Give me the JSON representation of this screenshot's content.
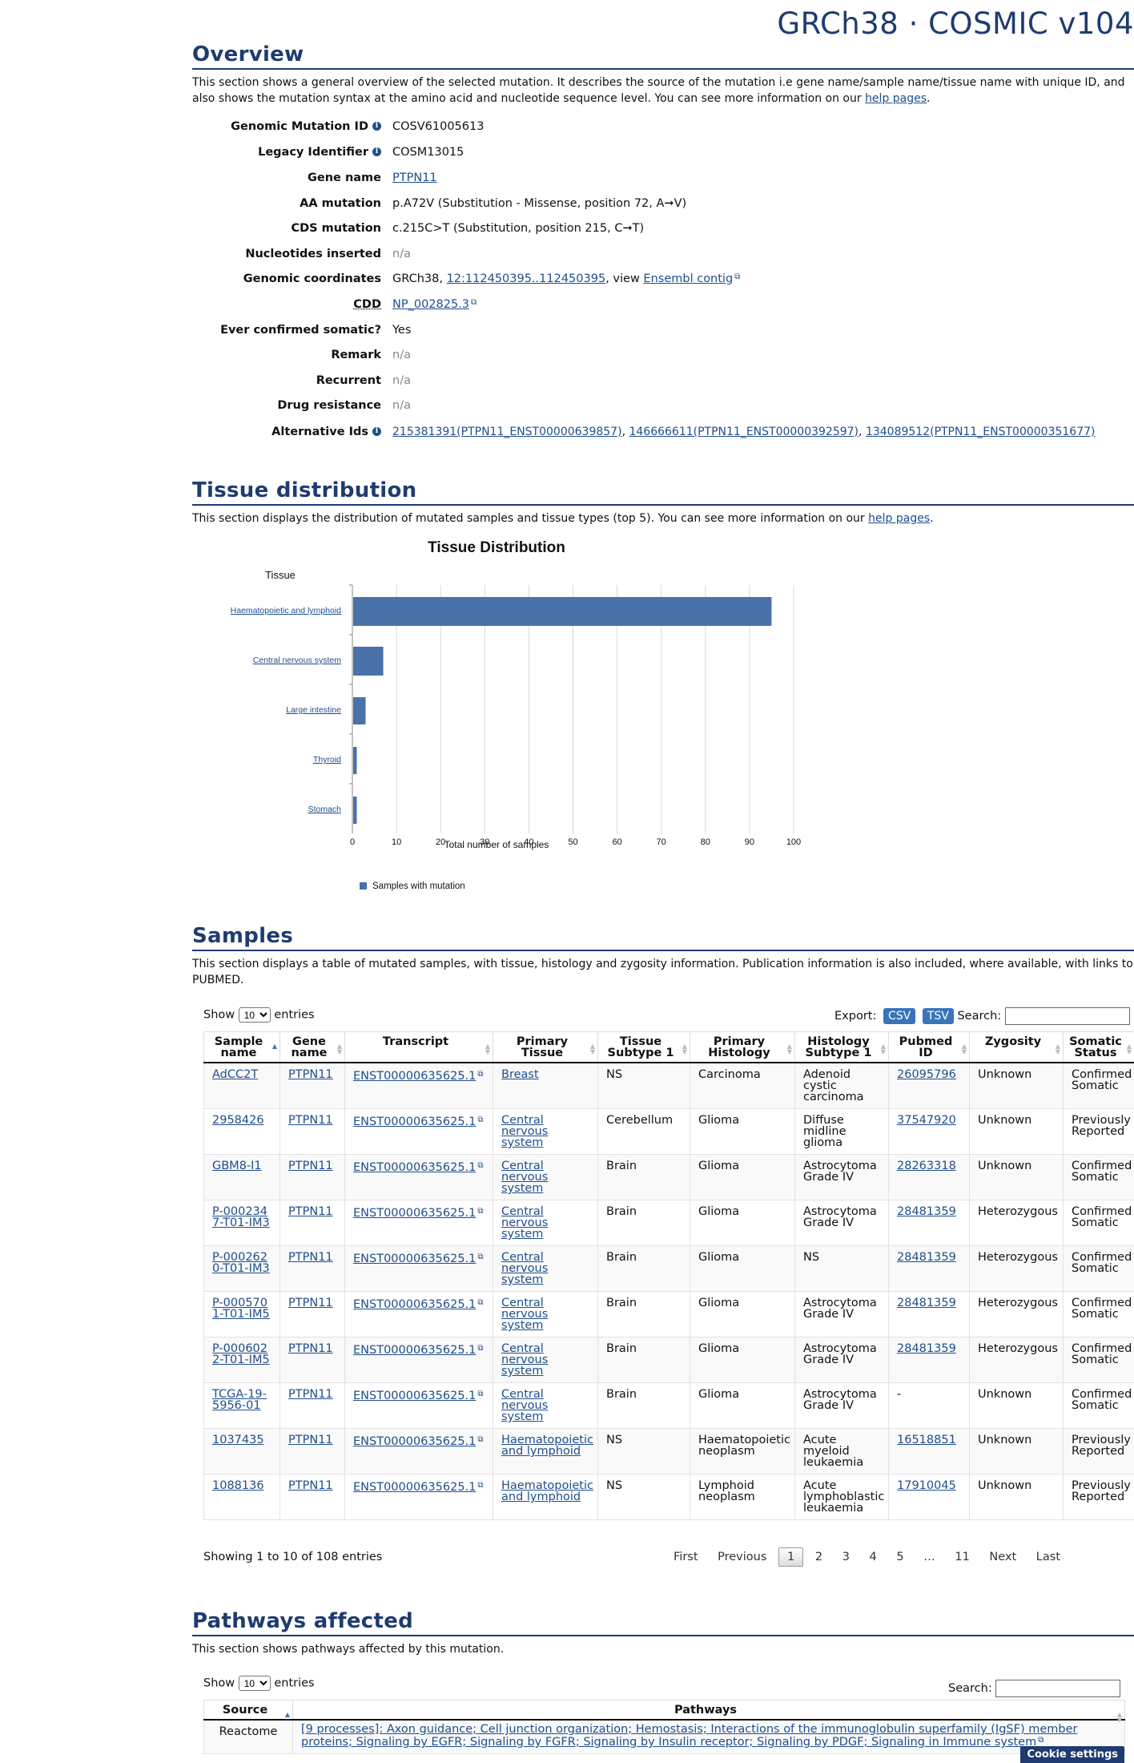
{
  "brand": "GRCh38 · COSMIC v104",
  "overview": {
    "title": "Overview",
    "desc_pre": "This section shows a general overview of the selected mutation. It describes the source of the mutation i.e gene name/sample name/tissue name with unique ID, and also shows the mutation syntax at the amino acid and nucleotide sequence level. You can see more information on our ",
    "help_link": "help pages",
    "desc_post": ".",
    "rows": {
      "genomic_id": {
        "label": "Genomic Mutation ID",
        "value": "COSV61005613"
      },
      "legacy_id": {
        "label": "Legacy Identifier",
        "value": "COSM13015"
      },
      "gene": {
        "label": "Gene name",
        "value": "PTPN11"
      },
      "aa": {
        "label": "AA mutation",
        "value": "p.A72V (Substitution - Missense, position 72, A➞V)"
      },
      "cds": {
        "label": "CDS mutation",
        "value": "c.215C>T (Substitution, position 215, C➞T)"
      },
      "nuc": {
        "label": "Nucleotides inserted",
        "value": "n/a"
      },
      "coords": {
        "label": "Genomic coordinates",
        "prefix": "GRCh38, ",
        "link": "12:112450395..112450395",
        "mid": ", view ",
        "link2": "Ensembl contig"
      },
      "cdd": {
        "label": "CDD",
        "value": "NP_002825.3"
      },
      "somatic": {
        "label": "Ever confirmed somatic?",
        "value": "Yes"
      },
      "remark": {
        "label": "Remark",
        "value": "n/a"
      },
      "recurrent": {
        "label": "Recurrent",
        "value": "n/a"
      },
      "drug": {
        "label": "Drug resistance",
        "value": "n/a"
      },
      "alt": {
        "label": "Alternative Ids",
        "id1": "215381391(PTPN11_ENST00000639857)",
        "id2": "146666611(PTPN11_ENST00000392597)",
        "id3": "134089512(PTPN11_ENST00000351677)",
        "sep": ", "
      }
    }
  },
  "tissue": {
    "title": "Tissue distribution",
    "desc_pre": "This section displays the distribution of mutated samples and tissue types (top 5). You can see more information on our ",
    "help_link": "help pages",
    "desc_post": "."
  },
  "chart_data": {
    "type": "bar",
    "orientation": "horizontal",
    "title": "Tissue Distribution",
    "ylabel": "Tissue",
    "xlabel": "Total number of samples",
    "categories": [
      "Haematopoietic and lymphoid",
      "Central nervous system",
      "Large intestine",
      "Thyroid",
      "Stomach"
    ],
    "series": [
      {
        "name": "Samples with mutation",
        "values": [
          95,
          7,
          3,
          1,
          1
        ]
      }
    ],
    "xlim": [
      0,
      100
    ],
    "xticks": [
      0,
      10,
      20,
      30,
      40,
      50,
      60,
      70,
      80,
      90,
      100
    ],
    "grid": true,
    "legend": "bottom-left",
    "color": "#4a72a8"
  },
  "samples": {
    "title": "Samples",
    "desc": "This section displays a table of mutated samples, with tissue, histology and zygosity information. Publication information is also included, where available, with links to PUBMED.",
    "show_label": "Show",
    "entries_label": "entries",
    "page_size": "10",
    "export_label": "Export:",
    "csv": "CSV",
    "tsv": "TSV",
    "search_label": "Search:",
    "headers": [
      "Sample name",
      "Gene name",
      "Transcript",
      "Primary Tissue",
      "Tissue Subtype 1",
      "Primary Histology",
      "Histology Subtype 1",
      "Pubmed ID",
      "Zygosity",
      "Somatic Status"
    ],
    "rows": [
      [
        "AdCC2T",
        "PTPN11",
        "ENST00000635625.1",
        "Breast",
        "NS",
        "Carcinoma",
        "Adenoid cystic carcinoma",
        "26095796",
        "Unknown",
        "Confirmed Somatic"
      ],
      [
        "2958426",
        "PTPN11",
        "ENST00000635625.1",
        "Central nervous system",
        "Cerebellum",
        "Glioma",
        "Diffuse midline glioma",
        "37547920",
        "Unknown",
        "Previously Reported"
      ],
      [
        "GBM8-I1",
        "PTPN11",
        "ENST00000635625.1",
        "Central nervous system",
        "Brain",
        "Glioma",
        "Astrocytoma Grade IV",
        "28263318",
        "Unknown",
        "Confirmed Somatic"
      ],
      [
        "P-0002347-T01-IM3",
        "PTPN11",
        "ENST00000635625.1",
        "Central nervous system",
        "Brain",
        "Glioma",
        "Astrocytoma Grade IV",
        "28481359",
        "Heterozygous",
        "Confirmed Somatic"
      ],
      [
        "P-0002620-T01-IM3",
        "PTPN11",
        "ENST00000635625.1",
        "Central nervous system",
        "Brain",
        "Glioma",
        "NS",
        "28481359",
        "Heterozygous",
        "Confirmed Somatic"
      ],
      [
        "P-0005701-T01-IM5",
        "PTPN11",
        "ENST00000635625.1",
        "Central nervous system",
        "Brain",
        "Glioma",
        "Astrocytoma Grade IV",
        "28481359",
        "Heterozygous",
        "Confirmed Somatic"
      ],
      [
        "P-0006022-T01-IM5",
        "PTPN11",
        "ENST00000635625.1",
        "Central nervous system",
        "Brain",
        "Glioma",
        "Astrocytoma Grade IV",
        "28481359",
        "Heterozygous",
        "Confirmed Somatic"
      ],
      [
        "TCGA-19-5956-01",
        "PTPN11",
        "ENST00000635625.1",
        "Central nervous system",
        "Brain",
        "Glioma",
        "Astrocytoma Grade IV",
        "-",
        "Unknown",
        "Confirmed Somatic"
      ],
      [
        "1037435",
        "PTPN11",
        "ENST00000635625.1",
        "Haematopoietic and lymphoid",
        "NS",
        "Haematopoietic neoplasm",
        "Acute myeloid leukaemia",
        "16518851",
        "Unknown",
        "Previously Reported"
      ],
      [
        "1088136",
        "PTPN11",
        "ENST00000635625.1",
        "Haematopoietic and lymphoid",
        "NS",
        "Lymphoid neoplasm",
        "Acute lymphoblastic leukaemia",
        "17910045",
        "Unknown",
        "Previously Reported"
      ]
    ],
    "info": "Showing 1 to 10 of 108 entries",
    "pager": {
      "first": "First",
      "prev": "Previous",
      "pages": [
        "1",
        "2",
        "3",
        "4",
        "5"
      ],
      "ellipsis": "…",
      "last_page": "11",
      "next": "Next",
      "last": "Last"
    }
  },
  "pathways": {
    "title": "Pathways affected",
    "desc": "This section shows pathways affected by this mutation.",
    "show_label": "Show",
    "entries_label": "entries",
    "page_size": "10",
    "search_label": "Search:",
    "headers": [
      "Source",
      "Pathways"
    ],
    "row": {
      "source": "Reactome",
      "text": "[9 processes]: Axon guidance; Cell junction organization; Hemostasis; Interactions of the immunoglobulin superfamily (IgSF) member proteins; Signaling by EGFR; Signaling by FGFR; Signaling by Insulin receptor; Signaling by PDGF; Signaling in Immune system"
    }
  },
  "cookie": "Cookie settings"
}
